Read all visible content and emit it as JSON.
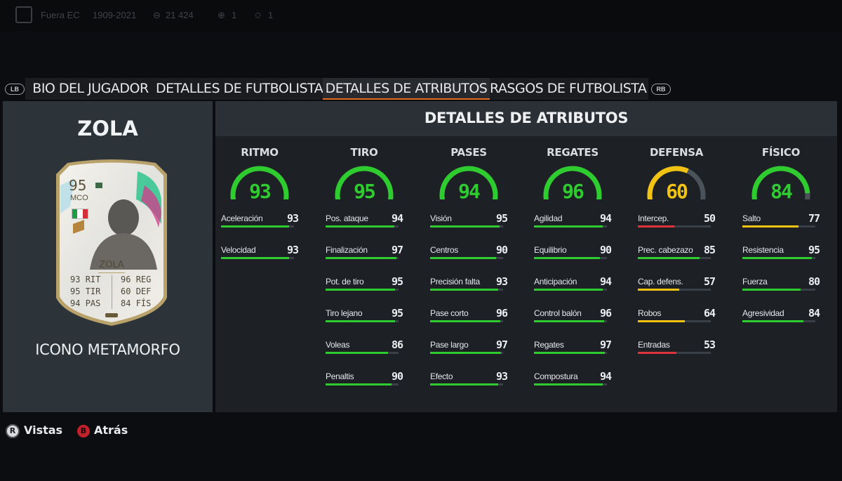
{
  "topbar": {
    "items": [
      "Fuera EC",
      "1909-2021",
      "21 424",
      "1",
      "1"
    ]
  },
  "tabs": [
    {
      "label": "BIO DEL JUGADOR",
      "active": false
    },
    {
      "label": "DETALLES DE FUTBOLISTA",
      "active": false
    },
    {
      "label": "DETALLES DE ATRIBUTOS",
      "active": true
    },
    {
      "label": "RASGOS DE FUTBOLISTA",
      "active": false
    }
  ],
  "shoulders": {
    "left": "LB",
    "right": "RB"
  },
  "player": {
    "name": "ZOLA",
    "card_type": "ICONO METAMORFO",
    "card": {
      "rating": "95",
      "position": "MCO",
      "name": "ZOLA",
      "stats_left": [
        {
          "value": "93",
          "label": "RIT"
        },
        {
          "value": "95",
          "label": "TIR"
        },
        {
          "value": "94",
          "label": "PAS"
        }
      ],
      "stats_right": [
        {
          "value": "96",
          "label": "REG"
        },
        {
          "value": "60",
          "label": "DEF"
        },
        {
          "value": "84",
          "label": "FÍS"
        }
      ]
    }
  },
  "attributes": {
    "title": "DETALLES DE ATRIBUTOS",
    "colors": {
      "green": "#2ecc2e",
      "yellow": "#f2c313",
      "red": "#e0323b",
      "track": "#3a4047"
    },
    "categories": [
      {
        "name": "RITMO",
        "value": 93,
        "stats": [
          {
            "name": "Aceleración",
            "value": 93
          },
          {
            "name": "Velocidad",
            "value": 93
          }
        ]
      },
      {
        "name": "TIRO",
        "value": 95,
        "stats": [
          {
            "name": "Pos. ataque",
            "value": 94
          },
          {
            "name": "Finalización",
            "value": 97
          },
          {
            "name": "Pot. de tiro",
            "value": 95
          },
          {
            "name": "Tiro lejano",
            "value": 95
          },
          {
            "name": "Voleas",
            "value": 86
          },
          {
            "name": "Penaltis",
            "value": 90
          }
        ]
      },
      {
        "name": "PASES",
        "value": 94,
        "stats": [
          {
            "name": "Visión",
            "value": 95
          },
          {
            "name": "Centros",
            "value": 90
          },
          {
            "name": "Precisión falta",
            "value": 93
          },
          {
            "name": "Pase corto",
            "value": 96
          },
          {
            "name": "Pase largo",
            "value": 97
          },
          {
            "name": "Efecto",
            "value": 93
          }
        ]
      },
      {
        "name": "REGATES",
        "value": 96,
        "stats": [
          {
            "name": "Agilidad",
            "value": 94
          },
          {
            "name": "Equilibrio",
            "value": 90
          },
          {
            "name": "Anticipación",
            "value": 94
          },
          {
            "name": "Control balón",
            "value": 96
          },
          {
            "name": "Regates",
            "value": 97
          },
          {
            "name": "Compostura",
            "value": 94
          }
        ]
      },
      {
        "name": "DEFENSA",
        "value": 60,
        "stats": [
          {
            "name": "Intercep.",
            "value": 50
          },
          {
            "name": "Prec. cabezazo",
            "value": 85
          },
          {
            "name": "Cap. defens.",
            "value": 57
          },
          {
            "name": "Robos",
            "value": 64
          },
          {
            "name": "Entradas",
            "value": 53
          }
        ]
      },
      {
        "name": "FÍSICO",
        "value": 84,
        "stats": [
          {
            "name": "Salto",
            "value": 77
          },
          {
            "name": "Resistencia",
            "value": 95
          },
          {
            "name": "Fuerza",
            "value": 80
          },
          {
            "name": "Agresividad",
            "value": 84
          }
        ]
      }
    ]
  },
  "bottom": {
    "views": {
      "key": "R",
      "label": "Vistas"
    },
    "back": {
      "key": "B",
      "label": "Atrás"
    }
  }
}
